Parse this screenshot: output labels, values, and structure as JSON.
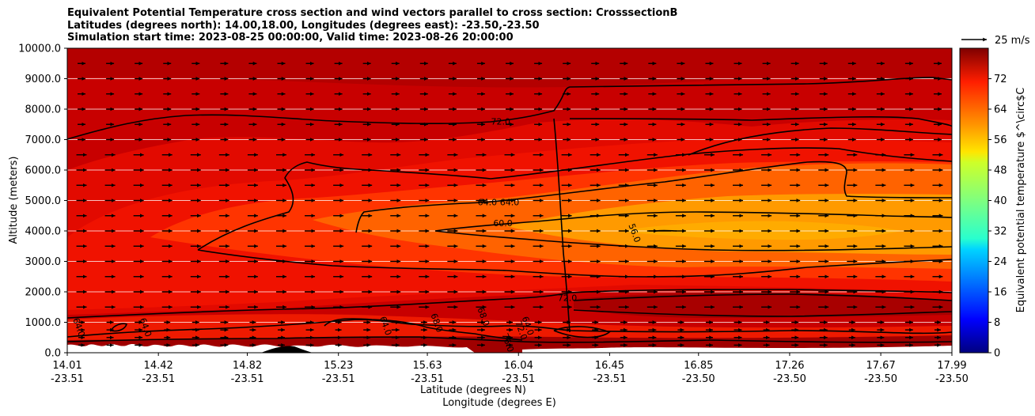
{
  "chart_data": {
    "type": "contourf cross-section with contour lines and wind vectors",
    "title_lines": [
      "Equivalent Potential Temperature cross section and wind vectors parallel to cross section: CrosssectionB",
      "Latitudes (degrees north): 14.00,18.00, Longitudes (degrees east): -23.50,-23.50",
      "Simulation start time: 2023-08-25 00:00:00, Valid time: 2023-08-26 20:00:00"
    ],
    "ylabel": "Altitude (meters)",
    "xlabel_line1": "Latitude (degrees N)",
    "xlabel_line2": "Longitude (degrees E)",
    "ylim": [
      0,
      10000
    ],
    "yticks": [
      "0.0",
      "1000.0",
      "2000.0",
      "3000.0",
      "4000.0",
      "5000.0",
      "6000.0",
      "7000.0",
      "8000.0",
      "9000.0",
      "10000.0"
    ],
    "xlim": [
      14.01,
      17.99
    ],
    "xticks": [
      {
        "lat": "14.01",
        "lon": "-23.51"
      },
      {
        "lat": "14.42",
        "lon": "-23.51"
      },
      {
        "lat": "14.82",
        "lon": "-23.51"
      },
      {
        "lat": "15.23",
        "lon": "-23.51"
      },
      {
        "lat": "15.63",
        "lon": "-23.51"
      },
      {
        "lat": "16.04",
        "lon": "-23.51"
      },
      {
        "lat": "16.45",
        "lon": "-23.51"
      },
      {
        "lat": "16.85",
        "lon": "-23.50"
      },
      {
        "lat": "17.26",
        "lon": "-23.50"
      },
      {
        "lat": "17.67",
        "lon": "-23.50"
      },
      {
        "lat": "17.99",
        "lon": "-23.50"
      }
    ],
    "grid": "horizontal lines at y ticks",
    "colorbar": {
      "label": "Equivalent potential temperature $^\\circ$C",
      "range": [
        0,
        80
      ],
      "ticks": [
        "0",
        "8",
        "16",
        "24",
        "32",
        "40",
        "48",
        "56",
        "64",
        "72"
      ],
      "colormap": "jet"
    },
    "quiver_key": {
      "label": "25 m/s"
    },
    "contour_labels": [
      {
        "text": "72.0",
        "x": 15.96,
        "y": 7500
      },
      {
        "text": "64.0",
        "x": 16.0,
        "y": 4850
      },
      {
        "text": "64.0",
        "x": 15.9,
        "y": 4850
      },
      {
        "text": "60.0",
        "x": 15.97,
        "y": 4150
      },
      {
        "text": "56.0",
        "x": 16.55,
        "y": 3900
      },
      {
        "text": "64.0",
        "x": 14.05,
        "y": 800
      },
      {
        "text": "64.0",
        "x": 14.35,
        "y": 800
      },
      {
        "text": "64.0",
        "x": 15.43,
        "y": 850
      },
      {
        "text": "68.0",
        "x": 15.66,
        "y": 950
      },
      {
        "text": "68.0",
        "x": 15.87,
        "y": 1150
      },
      {
        "text": "72.0",
        "x": 16.04,
        "y": 700
      },
      {
        "text": "76.0",
        "x": 15.98,
        "y": 300
      },
      {
        "text": "64.0",
        "x": 16.07,
        "y": 850
      },
      {
        "text": "72.0",
        "x": 16.26,
        "y": 1700
      }
    ],
    "wind": {
      "direction": "parallel to section, towards increasing latitude",
      "levels_m": [
        250,
        500,
        750,
        1000,
        1500,
        2000,
        2500,
        3000,
        3500,
        4000,
        4500,
        5000,
        5500,
        6000,
        6500,
        7000,
        7500,
        8000,
        8500,
        9000,
        9500
      ]
    },
    "fill_regions": [
      {
        "theta_e_c": 72,
        "description": "upper layer above about 7000 m and low-level band near 1000-2000 m"
      },
      {
        "theta_e_c": 68,
        "description": "mid layer 2000-7000 m"
      },
      {
        "theta_e_c": 64,
        "description": "layer 3000-6000 m north of 15.3"
      },
      {
        "theta_e_c": 60,
        "description": "core 3300-5000 m north of 15.7"
      },
      {
        "theta_e_c": 56,
        "description": "core near 3900-4300 m around 16.6-17.0"
      },
      {
        "theta_e_c": 76,
        "description": "surface layer below 700 m and band near 1500 m north of 16.5"
      }
    ]
  }
}
